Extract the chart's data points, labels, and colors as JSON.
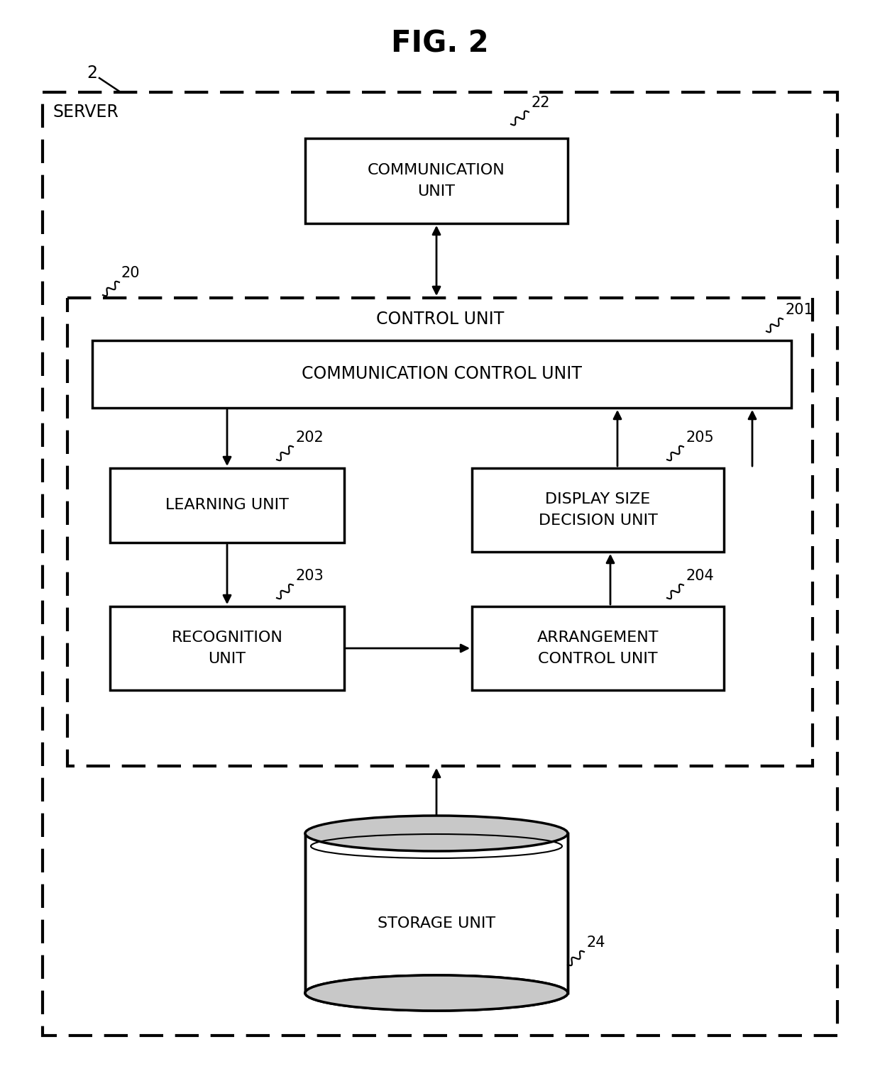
{
  "title": "FIG. 2",
  "bg_color": "#ffffff",
  "line_color": "#000000",
  "font_color": "#000000",
  "server_label": "SERVER",
  "server_ref": "2",
  "control_unit_label": "CONTROL UNIT",
  "control_unit_ref": "20",
  "comm_unit_label": "COMMUNICATION\nUNIT",
  "comm_unit_ref": "22",
  "comm_control_label": "COMMUNICATION CONTROL UNIT",
  "comm_control_ref": "201",
  "learning_label": "LEARNING UNIT",
  "learning_ref": "202",
  "recognition_label": "RECOGNITION\nUNIT",
  "recognition_ref": "203",
  "arrangement_label": "ARRANGEMENT\nCONTROL UNIT",
  "arrangement_ref": "204",
  "display_size_label": "DISPLAY SIZE\nDECISION UNIT",
  "display_size_ref": "205",
  "storage_label": "STORAGE UNIT",
  "storage_ref": "24"
}
